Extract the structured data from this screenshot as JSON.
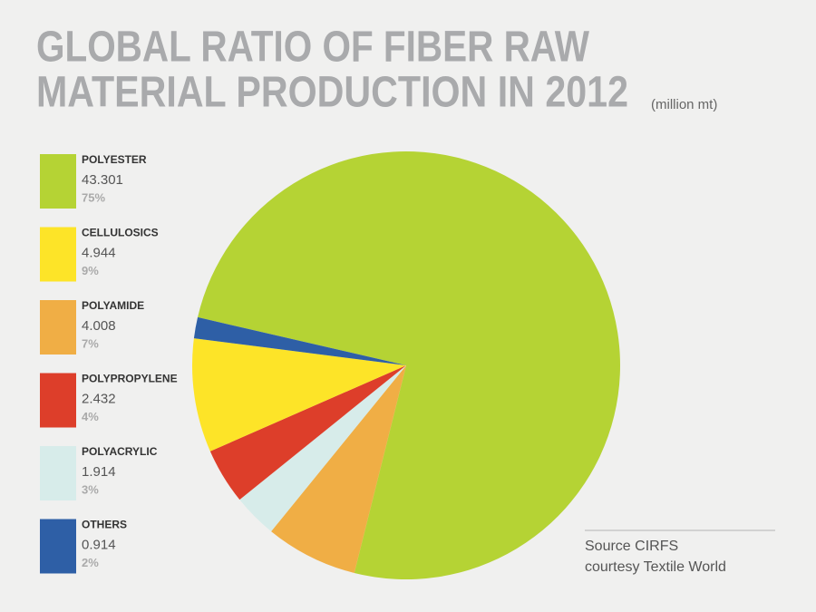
{
  "chart_data": {
    "type": "pie",
    "title": [
      "GLOBAL RATIO OF FIBER RAW",
      "MATERIAL PRODUCTION IN 2012"
    ],
    "subtitle": "(million mt)",
    "categories": [
      "POLYESTER",
      "CELLULOSICS",
      "POLYAMIDE",
      "POLYPROPYLENE",
      "POLYACRYLIC",
      "OTHERS"
    ],
    "values": [
      43.301,
      4.944,
      4.008,
      2.432,
      1.914,
      0.914
    ],
    "share_labels": [
      "75%",
      "9%",
      "7%",
      "4%",
      "3%",
      "2%"
    ],
    "colors": [
      "#b5d334",
      "#fde428",
      "#f0ae45",
      "#dd3e2a",
      "#d7ecea",
      "#2e5fa6"
    ],
    "source": [
      "Source CIRFS",
      "courtesy Textile World"
    ]
  }
}
